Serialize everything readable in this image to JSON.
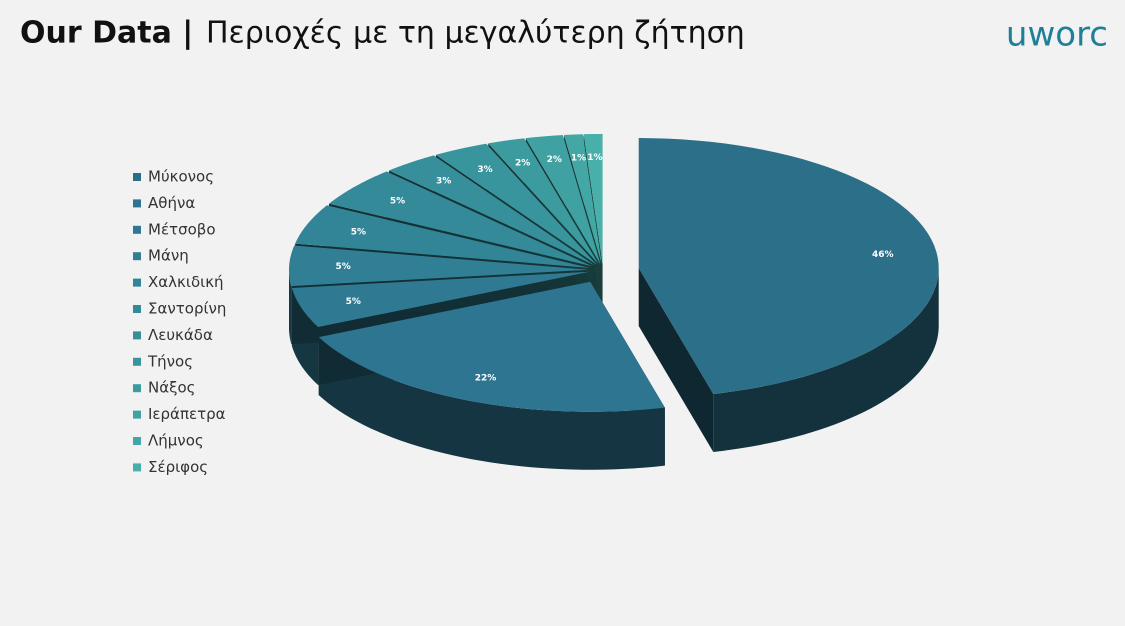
{
  "logo": "uworc",
  "chart_data": {
    "type": "pie3d",
    "title": "Our Data |",
    "subtitle": "Περιοχές με τη μεγαλύτερη ζήτηση",
    "categories": [
      "Μύκονος",
      "Αθήνα",
      "Μέτσοβο",
      "Μάνη",
      "Χαλκιδική",
      "Σαντορίνη",
      "Λευκάδα",
      "Τήνος",
      "Νάξος",
      "Ιεράπετρα",
      "Λήμνος",
      "Σέριφος"
    ],
    "values": [
      46,
      22,
      5,
      5,
      5,
      5,
      3,
      3,
      2,
      2,
      1,
      1
    ],
    "value_labels": [
      "46%",
      "22%",
      "5%",
      "5%",
      "5%",
      "5%",
      "3%",
      "3%",
      "2%",
      "2%",
      "1%",
      "1%"
    ],
    "colors": [
      "#2b6f88",
      "#2d7590",
      "#2f7a92",
      "#307f95",
      "#328597",
      "#348a99",
      "#368f9b",
      "#39959d",
      "#3c9b9f",
      "#3fa1a2",
      "#43a8a5",
      "#48b0a9"
    ],
    "legend": "left"
  }
}
